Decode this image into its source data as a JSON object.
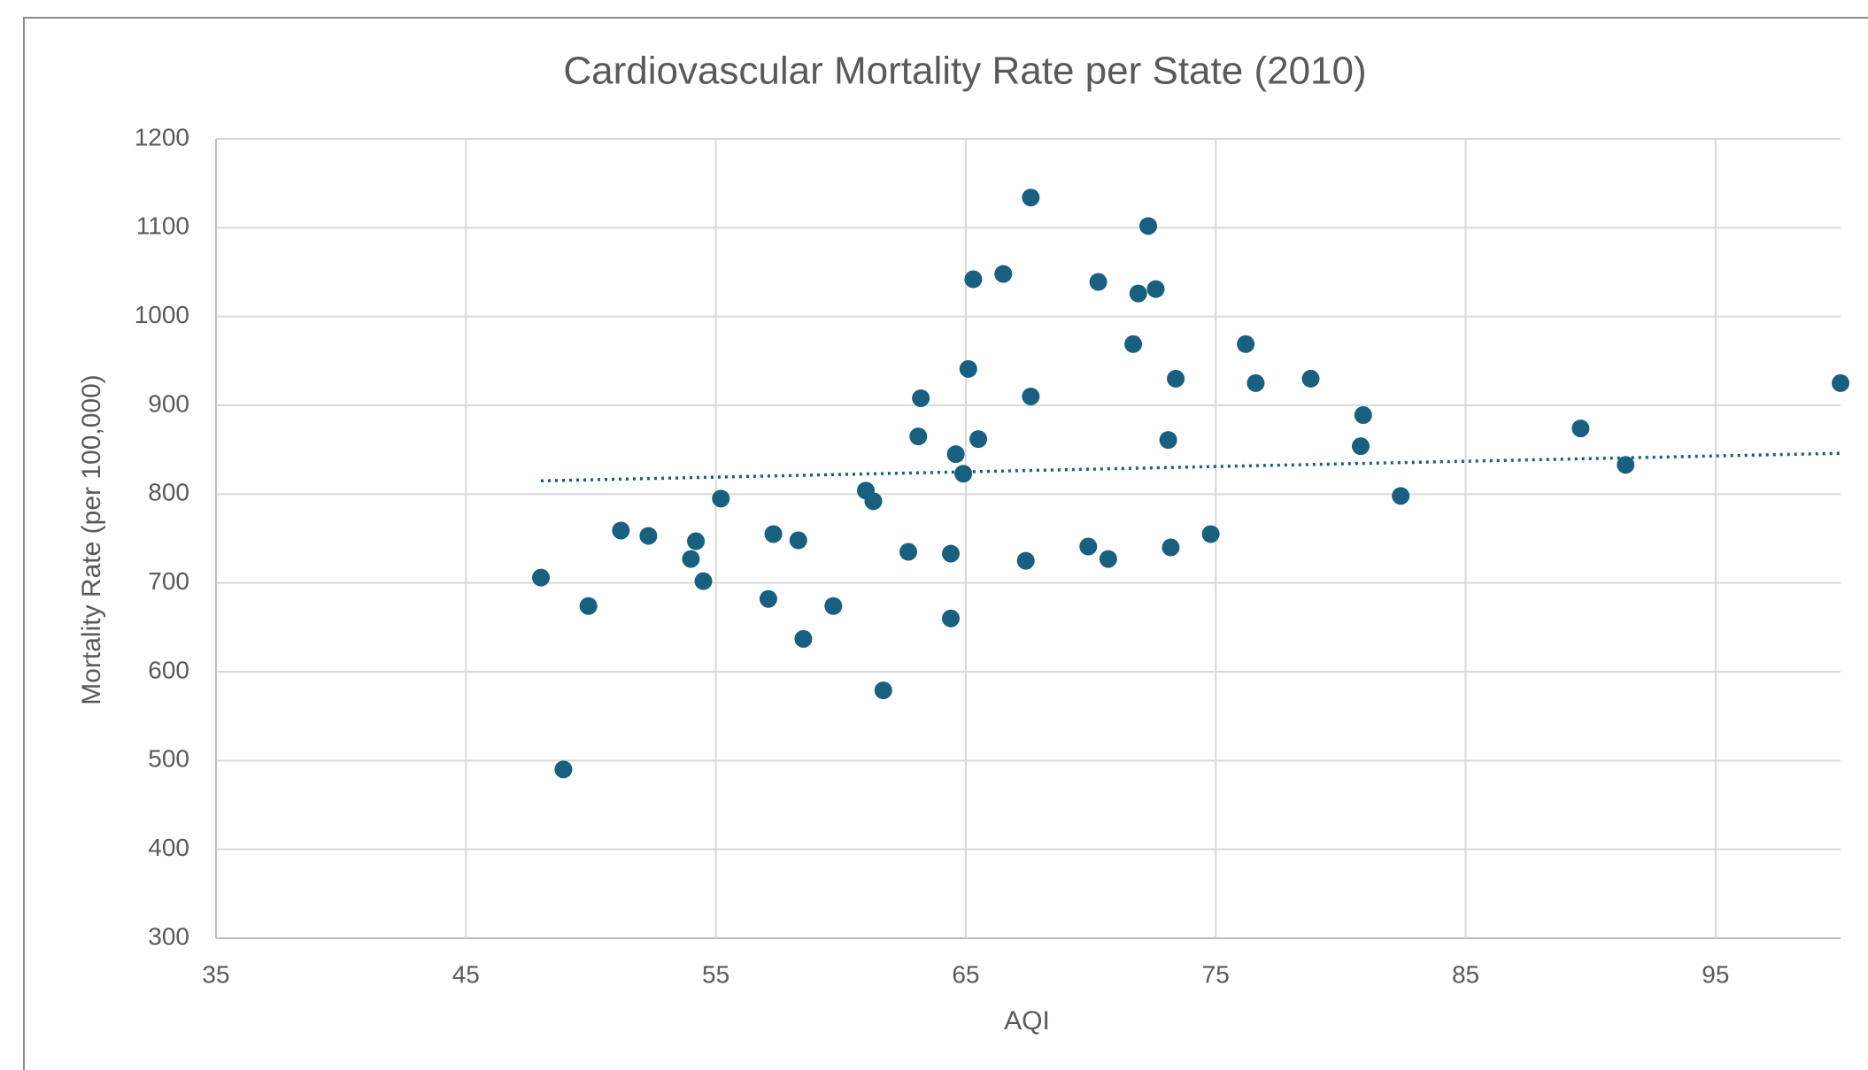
{
  "chart_data": {
    "type": "scatter",
    "title": "Cardiovascular Mortality Rate per State (2010)",
    "x_label": "AQI",
    "y_label": "Mortality Rate (per 100,000)",
    "series": [
      {
        "color": "#185f80",
        "x": [
          48.0,
          48.9,
          49.9,
          51.2,
          52.3,
          54.0,
          54.2,
          54.5,
          55.2,
          57.1,
          57.3,
          58.3,
          58.5,
          59.7,
          61.0,
          61.3,
          61.7,
          62.7,
          63.1,
          63.2,
          64.4,
          64.4,
          64.6,
          64.9,
          65.1,
          65.3,
          65.5,
          66.5,
          67.6,
          67.4,
          67.6,
          69.9,
          70.3,
          70.7,
          71.7,
          71.9,
          72.3,
          72.6,
          73.1,
          73.2,
          73.4,
          74.8,
          76.2,
          76.6,
          78.8,
          80.9,
          80.8,
          82.4,
          89.6,
          91.4,
          100.0
        ],
        "values": [
          706,
          490,
          674,
          759,
          753,
          727,
          747,
          702,
          795,
          682,
          755,
          748,
          637,
          674,
          804,
          792,
          579,
          735,
          865,
          908,
          733,
          660,
          845,
          823,
          941,
          1042,
          862,
          1048,
          1134,
          725,
          910,
          741,
          1039,
          727,
          969,
          1026,
          1102,
          1031,
          861,
          740,
          930,
          755,
          969,
          925,
          930,
          889,
          854,
          798,
          874,
          833,
          925
        ]
      }
    ],
    "trendline": {
      "color": "#185f80",
      "x": [
        48,
        100
      ],
      "values": [
        815,
        846
      ]
    },
    "xlim": [
      35,
      100
    ],
    "xticks": [
      35,
      45,
      55,
      65,
      75,
      85,
      95
    ],
    "ylim": [
      300,
      1200
    ],
    "yticks": [
      300,
      400,
      500,
      600,
      700,
      800,
      900,
      1000,
      1100,
      1200
    ],
    "grid": true
  }
}
